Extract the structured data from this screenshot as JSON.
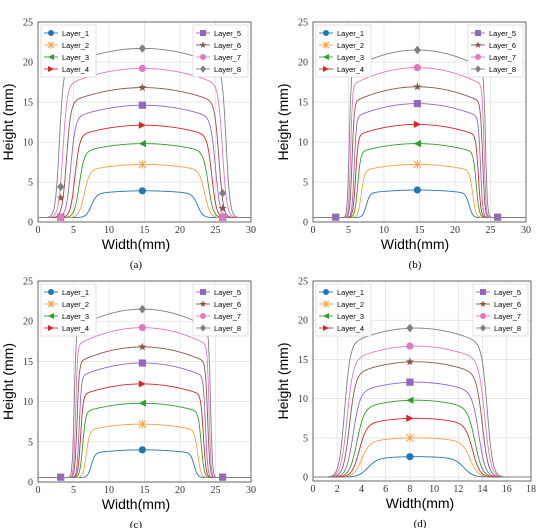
{
  "colors": {
    "Layer_1": "#1f77b4",
    "Layer_2": "#ff9f40",
    "Layer_3": "#2ca02c",
    "Layer_4": "#d62728",
    "Layer_5": "#9467bd",
    "Layer_6": "#8c564b",
    "Layer_7": "#e377c2",
    "Layer_8": "#7f7f7f"
  },
  "chart_data": [
    {
      "type": "line",
      "panel_label": "(a)",
      "xlabel": "Width(mm)",
      "ylabel": "Height (mm)",
      "xlim": [
        0,
        30
      ],
      "ylim": [
        0,
        25
      ],
      "xticks": [
        0,
        5,
        10,
        15,
        20,
        25,
        30
      ],
      "yticks": [
        0,
        5,
        10,
        15,
        20,
        25
      ],
      "grid": true,
      "legend_left": [
        "Layer_1",
        "Layer_2",
        "Layer_3",
        "Layer_4"
      ],
      "legend_right": [
        "Layer_5",
        "Layer_6",
        "Layer_7",
        "Layer_8"
      ],
      "series": [
        {
          "name": "Layer_1",
          "marker": "circle",
          "peak": 3.9,
          "x0": 7.5,
          "x1": 22.5,
          "ramp": 1.5,
          "markers": [
            [
              14.7,
              3.9
            ]
          ]
        },
        {
          "name": "Layer_2",
          "marker": "x",
          "peak": 7.2,
          "x0": 6.5,
          "x1": 23.5,
          "ramp": 1.5,
          "markers": [
            [
              14.7,
              7.2
            ]
          ]
        },
        {
          "name": "Layer_3",
          "marker": "triangle-left",
          "peak": 9.8,
          "x0": 5.8,
          "x1": 24.0,
          "ramp": 1.4,
          "markers": [
            [
              14.7,
              9.8
            ]
          ]
        },
        {
          "name": "Layer_4",
          "marker": "triangle-right",
          "peak": 12.1,
          "x0": 5.2,
          "x1": 24.5,
          "ramp": 1.3,
          "markers": [
            [
              14.7,
              12.1
            ]
          ]
        },
        {
          "name": "Layer_5",
          "marker": "square",
          "peak": 14.6,
          "x0": 4.6,
          "x1": 25.0,
          "ramp": 1.3,
          "markers": [
            [
              14.7,
              14.6
            ],
            [
              3.2,
              0.6
            ],
            [
              26.0,
              0.6
            ]
          ]
        },
        {
          "name": "Layer_6",
          "marker": "star",
          "peak": 16.8,
          "x0": 4.0,
          "x1": 25.5,
          "ramp": 1.2,
          "markers": [
            [
              14.7,
              16.8
            ],
            [
              3.2,
              3.0
            ],
            [
              26.0,
              1.7
            ]
          ]
        },
        {
          "name": "Layer_7",
          "marker": "circle",
          "peak": 19.2,
          "x0": 3.5,
          "x1": 26.0,
          "ramp": 1.2,
          "markers": [
            [
              14.7,
              19.2
            ],
            [
              3.2,
              0.6
            ],
            [
              26.0,
              0.6
            ]
          ]
        },
        {
          "name": "Layer_8",
          "marker": "diamond",
          "peak": 21.7,
          "x0": 3.0,
          "x1": 26.5,
          "ramp": 1.1,
          "markers": [
            [
              14.7,
              21.7
            ],
            [
              3.2,
              4.4
            ],
            [
              26.0,
              3.6
            ]
          ]
        }
      ]
    },
    {
      "type": "line",
      "panel_label": "(b)",
      "xlabel": "Width(mm)",
      "ylabel": "Height (mm)",
      "xlim": [
        0,
        30
      ],
      "ylim": [
        0,
        25
      ],
      "xticks": [
        0,
        5,
        10,
        15,
        20,
        25,
        30
      ],
      "yticks": [
        0,
        5,
        10,
        15,
        20,
        25
      ],
      "grid": true,
      "legend_left": [
        "Layer_1",
        "Layer_2",
        "Layer_3",
        "Layer_4"
      ],
      "legend_right": [
        "Layer_5",
        "Layer_6",
        "Layer_7",
        "Layer_8"
      ],
      "series": [
        {
          "name": "Layer_1",
          "marker": "circle",
          "peak": 4.0,
          "x0": 7.5,
          "x1": 22.0,
          "ramp": 1.0,
          "markers": [
            [
              14.7,
              4.0
            ]
          ]
        },
        {
          "name": "Layer_2",
          "marker": "x",
          "peak": 7.2,
          "x0": 6.8,
          "x1": 22.5,
          "ramp": 0.9,
          "markers": [
            [
              14.7,
              7.2
            ]
          ]
        },
        {
          "name": "Layer_3",
          "marker": "triangle-left",
          "peak": 9.8,
          "x0": 6.3,
          "x1": 23.0,
          "ramp": 0.8,
          "markers": [
            [
              14.7,
              9.8
            ]
          ]
        },
        {
          "name": "Layer_4",
          "marker": "triangle-right",
          "peak": 12.2,
          "x0": 6.0,
          "x1": 23.3,
          "ramp": 0.7,
          "markers": [
            [
              14.7,
              12.2
            ]
          ]
        },
        {
          "name": "Layer_5",
          "marker": "square",
          "peak": 14.8,
          "x0": 5.8,
          "x1": 23.6,
          "ramp": 0.6,
          "markers": [
            [
              14.7,
              14.8
            ],
            [
              3.2,
              0.6
            ],
            [
              26.0,
              0.6
            ]
          ]
        },
        {
          "name": "Layer_6",
          "marker": "star",
          "peak": 16.9,
          "x0": 5.5,
          "x1": 23.9,
          "ramp": 0.6,
          "markers": [
            [
              14.7,
              16.9
            ]
          ]
        },
        {
          "name": "Layer_7",
          "marker": "circle",
          "peak": 19.3,
          "x0": 5.3,
          "x1": 24.1,
          "ramp": 0.5,
          "markers": [
            [
              14.7,
              19.3
            ]
          ]
        },
        {
          "name": "Layer_8",
          "marker": "diamond",
          "peak": 21.5,
          "x0": 5.1,
          "x1": 24.3,
          "ramp": 0.5,
          "markers": [
            [
              14.7,
              21.5
            ]
          ]
        }
      ]
    },
    {
      "type": "line",
      "panel_label": "(c)",
      "xlabel": "Width(mm)",
      "ylabel": "Height (mm)",
      "xlim": [
        0,
        30
      ],
      "ylim": [
        0,
        25
      ],
      "xticks": [
        0,
        5,
        10,
        15,
        20,
        25,
        30
      ],
      "yticks": [
        0,
        5,
        10,
        15,
        20,
        25
      ],
      "grid": true,
      "legend_left": [
        "Layer_1",
        "Layer_2",
        "Layer_3",
        "Layer_4"
      ],
      "legend_right": [
        "Layer_5",
        "Layer_6",
        "Layer_7",
        "Layer_8"
      ],
      "series": [
        {
          "name": "Layer_1",
          "marker": "circle",
          "peak": 4.0,
          "x0": 7.5,
          "x1": 22.0,
          "ramp": 1.0,
          "markers": [
            [
              14.7,
              4.0
            ]
          ]
        },
        {
          "name": "Layer_2",
          "marker": "x",
          "peak": 7.2,
          "x0": 6.8,
          "x1": 22.5,
          "ramp": 0.9,
          "markers": [
            [
              14.7,
              7.2
            ]
          ]
        },
        {
          "name": "Layer_3",
          "marker": "triangle-left",
          "peak": 9.8,
          "x0": 6.3,
          "x1": 23.0,
          "ramp": 0.8,
          "markers": [
            [
              14.7,
              9.8
            ]
          ]
        },
        {
          "name": "Layer_4",
          "marker": "triangle-right",
          "peak": 12.2,
          "x0": 6.0,
          "x1": 23.3,
          "ramp": 0.7,
          "markers": [
            [
              14.7,
              12.2
            ]
          ]
        },
        {
          "name": "Layer_5",
          "marker": "square",
          "peak": 14.8,
          "x0": 5.8,
          "x1": 23.6,
          "ramp": 0.6,
          "markers": [
            [
              14.7,
              14.8
            ],
            [
              3.2,
              0.6
            ],
            [
              26.0,
              0.6
            ]
          ]
        },
        {
          "name": "Layer_6",
          "marker": "star",
          "peak": 16.8,
          "x0": 5.5,
          "x1": 23.9,
          "ramp": 0.6,
          "markers": [
            [
              14.7,
              16.8
            ]
          ]
        },
        {
          "name": "Layer_7",
          "marker": "circle",
          "peak": 19.2,
          "x0": 5.3,
          "x1": 24.1,
          "ramp": 0.5,
          "markers": [
            [
              14.7,
              19.2
            ]
          ]
        },
        {
          "name": "Layer_8",
          "marker": "diamond",
          "peak": 21.5,
          "x0": 5.1,
          "x1": 24.3,
          "ramp": 0.5,
          "markers": [
            [
              14.7,
              21.5
            ]
          ]
        }
      ]
    },
    {
      "type": "line",
      "panel_label": "(d)",
      "xlabel": "Width(mm)",
      "ylabel": "Height (mm)",
      "xlim": [
        0,
        18
      ],
      "ylim": [
        -0.5,
        25
      ],
      "xticks": [
        0,
        2,
        4,
        6,
        8,
        10,
        12,
        14,
        16,
        18
      ],
      "yticks": [
        0,
        5,
        10,
        15,
        20,
        25
      ],
      "grid": true,
      "legend_left": [
        "Layer_1",
        "Layer_2",
        "Layer_3",
        "Layer_4"
      ],
      "legend_right": [
        "Layer_5",
        "Layer_6",
        "Layer_7",
        "Layer_8"
      ],
      "series": [
        {
          "name": "Layer_1",
          "marker": "circle",
          "peak": 2.6,
          "x0": 4.5,
          "x1": 12.5,
          "ramp": 1.5,
          "markers": [
            [
              8.0,
              2.6
            ]
          ]
        },
        {
          "name": "Layer_2",
          "marker": "x",
          "peak": 5.0,
          "x0": 4.0,
          "x1": 13.0,
          "ramp": 1.3,
          "markers": [
            [
              8.0,
              5.0
            ]
          ]
        },
        {
          "name": "Layer_3",
          "marker": "triangle-left",
          "peak": 9.8,
          "x0": 3.6,
          "x1": 13.4,
          "ramp": 1.2,
          "markers": [
            [
              8.0,
              9.8
            ]
          ]
        },
        {
          "name": "Layer_4",
          "marker": "triangle-right",
          "peak": 7.5,
          "x0": 3.8,
          "x1": 13.2,
          "ramp": 1.2,
          "markers": [
            [
              8.0,
              7.5
            ]
          ]
        },
        {
          "name": "Layer_5",
          "marker": "square",
          "peak": 12.1,
          "x0": 3.3,
          "x1": 13.7,
          "ramp": 1.1,
          "markers": [
            [
              8.0,
              12.1
            ]
          ]
        },
        {
          "name": "Layer_6",
          "marker": "star",
          "peak": 14.7,
          "x0": 3.0,
          "x1": 14.0,
          "ramp": 1.0,
          "markers": [
            [
              8.0,
              14.7
            ]
          ]
        },
        {
          "name": "Layer_7",
          "marker": "circle",
          "peak": 16.7,
          "x0": 2.8,
          "x1": 14.2,
          "ramp": 1.0,
          "markers": [
            [
              8.0,
              16.7
            ]
          ]
        },
        {
          "name": "Layer_8",
          "marker": "diamond",
          "peak": 19.0,
          "x0": 2.6,
          "x1": 14.4,
          "ramp": 0.9,
          "markers": [
            [
              8.0,
              19.0
            ]
          ]
        }
      ]
    }
  ]
}
